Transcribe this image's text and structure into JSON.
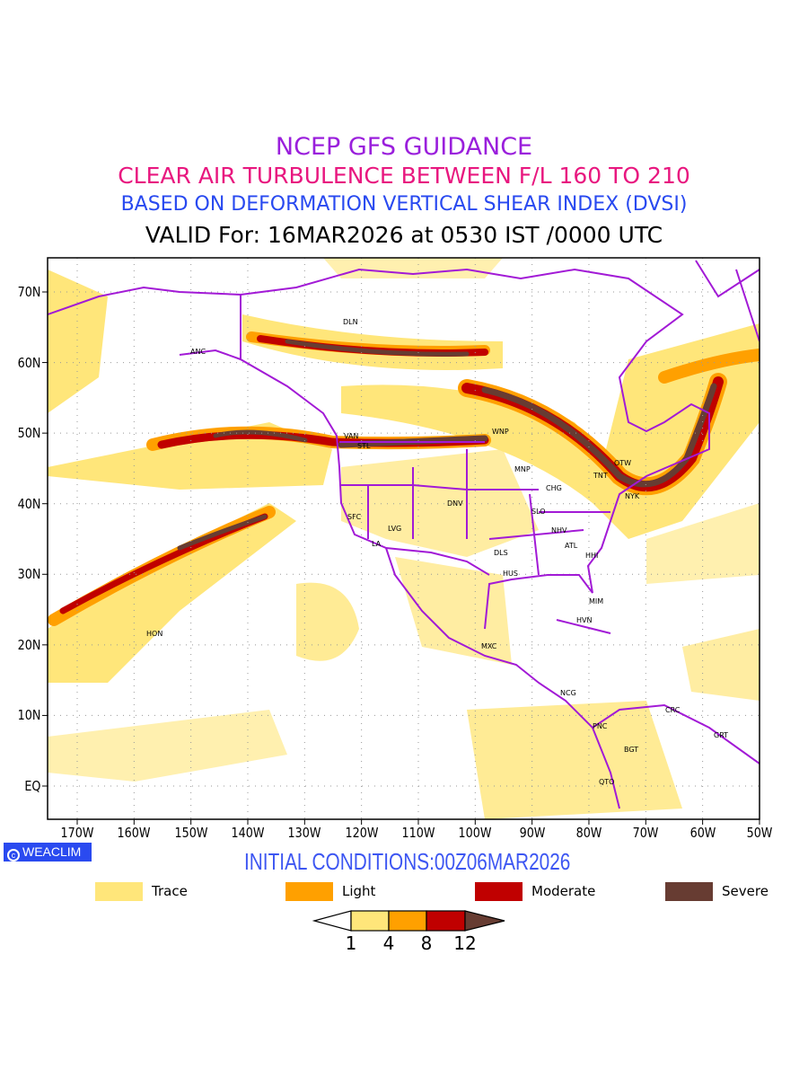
{
  "titles": {
    "line1": "NCEP GFS GUIDANCE",
    "line2": "CLEAR AIR TURBULENCE BETWEEN F/L 160 TO 210",
    "line3": "BASED ON DEFORMATION VERTICAL SHEAR INDEX (DVSI)",
    "line4": "VALID For: 16MAR2026 at 0530 IST /0000 UTC"
  },
  "axes": {
    "lon_labels": [
      "170W",
      "160W",
      "150W",
      "140W",
      "130W",
      "120W",
      "110W",
      "100W",
      "90W",
      "80W",
      "70W",
      "60W",
      "50W"
    ],
    "lat_labels": [
      "70N",
      "60N",
      "50N",
      "40N",
      "30N",
      "20N",
      "10N",
      "EQ"
    ]
  },
  "cities": [
    "DLN",
    "ANC",
    "VAN",
    "STL",
    "WNP",
    "MNP",
    "OTW",
    "TNT",
    "NYK",
    "CHG",
    "DNV",
    "SFC",
    "SLO",
    "LVG",
    "NHV",
    "LA",
    "ATL",
    "DLS",
    "HHI",
    "HUS",
    "MIM",
    "HVN",
    "HON",
    "MXC",
    "NCG",
    "CRC",
    "PNC",
    "GRT",
    "BGT",
    "QTO"
  ],
  "branding": "WEACLIM",
  "initial_conditions": "INITIAL CONDITIONS:00Z06MAR2026",
  "legend": [
    {
      "label": "Trace",
      "color": "#ffe67a"
    },
    {
      "label": "Light",
      "color": "#ffa000"
    },
    {
      "label": "Moderate",
      "color": "#c00000"
    },
    {
      "label": "Severe",
      "color": "#673c32"
    }
  ],
  "colorbar": {
    "ticks": [
      "1",
      "4",
      "8",
      "12"
    ]
  },
  "colors": {
    "coastline": "#a21ad6",
    "grid": "#999999"
  }
}
